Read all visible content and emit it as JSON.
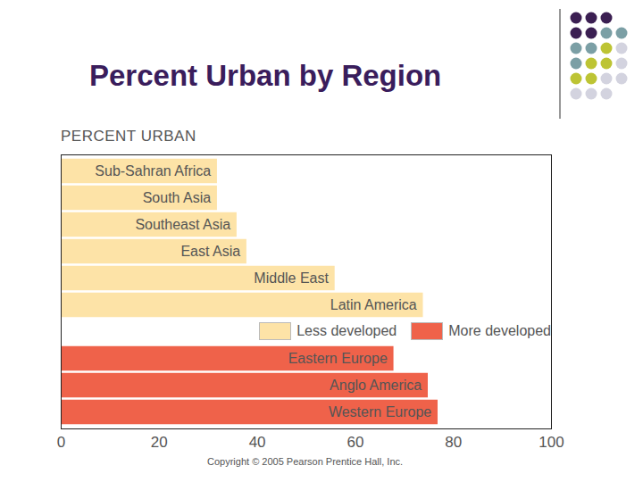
{
  "chart_data": {
    "type": "bar",
    "orientation": "horizontal",
    "title": "Percent Urban by Region",
    "subtitle": "PERCENT URBAN",
    "caption": "Copyright © 2005 Pearson Prentice Hall, Inc.",
    "categories": [
      "Sub-Sahran Africa",
      "South Asia",
      "Southeast Asia",
      "East Asia",
      "Middle East",
      "Latin America",
      null,
      "Eastern Europe",
      "Anglo America",
      "Western Europe"
    ],
    "series": [
      {
        "name": "Less developed",
        "color": "#fde3a7",
        "values": [
          32,
          32,
          36,
          38,
          56,
          74,
          null,
          null,
          null,
          null
        ]
      },
      {
        "name": "More developed",
        "color": "#ef624a",
        "values": [
          null,
          null,
          null,
          null,
          null,
          null,
          null,
          68,
          75,
          77
        ]
      }
    ],
    "xlim": [
      0,
      100
    ],
    "xticks": [
      0,
      20,
      40,
      60,
      80,
      100
    ],
    "legend": "right",
    "grid": false
  }
}
